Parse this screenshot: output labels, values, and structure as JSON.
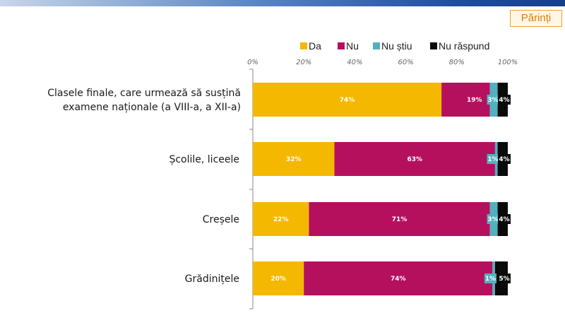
{
  "badge": {
    "label": "Părinți"
  },
  "colors": {
    "da": "#F5B800",
    "nu": "#B5105E",
    "nu_stiu": "#4FB2BE",
    "nu_raspund": "#0A0A0A",
    "axis": "#888888"
  },
  "chart_data": {
    "type": "bar",
    "orientation": "horizontal",
    "stacked": true,
    "title": "",
    "xlabel": "",
    "ylabel": "",
    "xlim": [
      0,
      100
    ],
    "x_ticks": [
      "0%",
      "20%",
      "40%",
      "60%",
      "80%",
      "100%"
    ],
    "legend_position": "top",
    "grid": false,
    "categories": [
      [
        "Clasele finale, care urmează să susțină",
        "examene naționale (a VIII-a, a XII-a)"
      ],
      [
        "Școlile, liceele"
      ],
      [
        "Creșele"
      ],
      [
        "Grădinițele"
      ]
    ],
    "series": [
      {
        "name": "Da",
        "color": "#F5B800",
        "values": [
          74,
          32,
          22,
          20
        ],
        "labels": [
          "74%",
          "32%",
          "22%",
          "20%"
        ]
      },
      {
        "name": "Nu",
        "color": "#B5105E",
        "values": [
          19,
          63,
          71,
          74
        ],
        "labels": [
          "19%",
          "63%",
          "71%",
          "74%"
        ]
      },
      {
        "name": "Nu știu",
        "color": "#4FB2BE",
        "values": [
          3,
          1,
          3,
          1
        ],
        "labels": [
          "3%",
          "1%",
          "3%",
          "1%"
        ]
      },
      {
        "name": "Nu răspund",
        "color": "#0A0A0A",
        "values": [
          4,
          4,
          4,
          5
        ],
        "labels": [
          "4%",
          "4%",
          "4%",
          "5%"
        ]
      }
    ]
  }
}
